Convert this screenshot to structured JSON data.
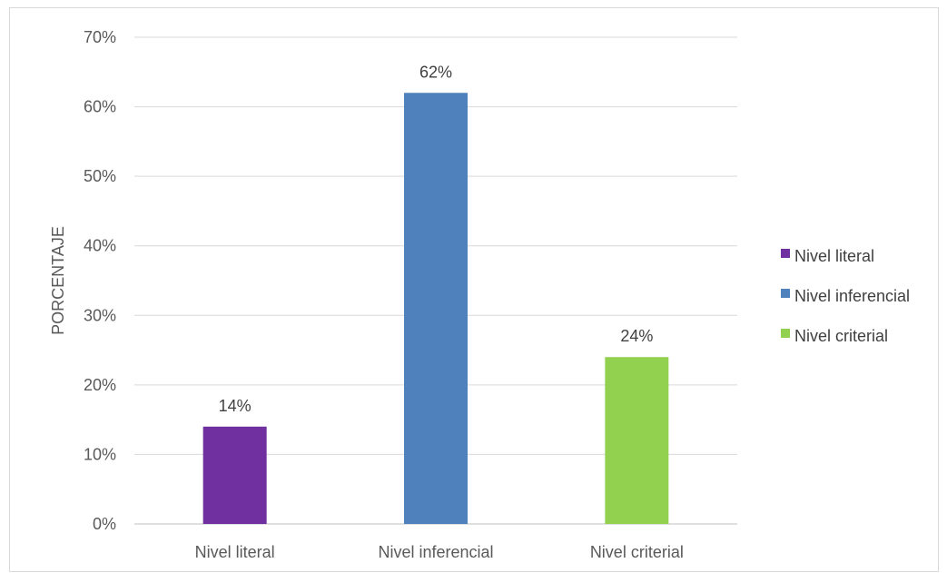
{
  "chart_data": {
    "type": "bar",
    "title": "",
    "xlabel": "",
    "ylabel": "PORCENTAJE",
    "categories": [
      "Nivel literal",
      "Nivel inferencial",
      "Nivel criterial"
    ],
    "values": [
      14,
      62,
      24
    ],
    "data_labels": [
      "14%",
      "62%",
      "24%"
    ],
    "colors": [
      "#7030a0",
      "#4f81bd",
      "#92d050"
    ],
    "ylim": [
      0,
      70
    ],
    "yticks": [
      0,
      10,
      20,
      30,
      40,
      50,
      60,
      70
    ],
    "ytick_labels": [
      "0%",
      "10%",
      "20%",
      "30%",
      "40%",
      "50%",
      "60%",
      "70%"
    ],
    "grid": true,
    "legend": {
      "position": "right",
      "entries": [
        "Nivel literal",
        "Nivel inferencial",
        "Nivel criterial"
      ]
    }
  }
}
